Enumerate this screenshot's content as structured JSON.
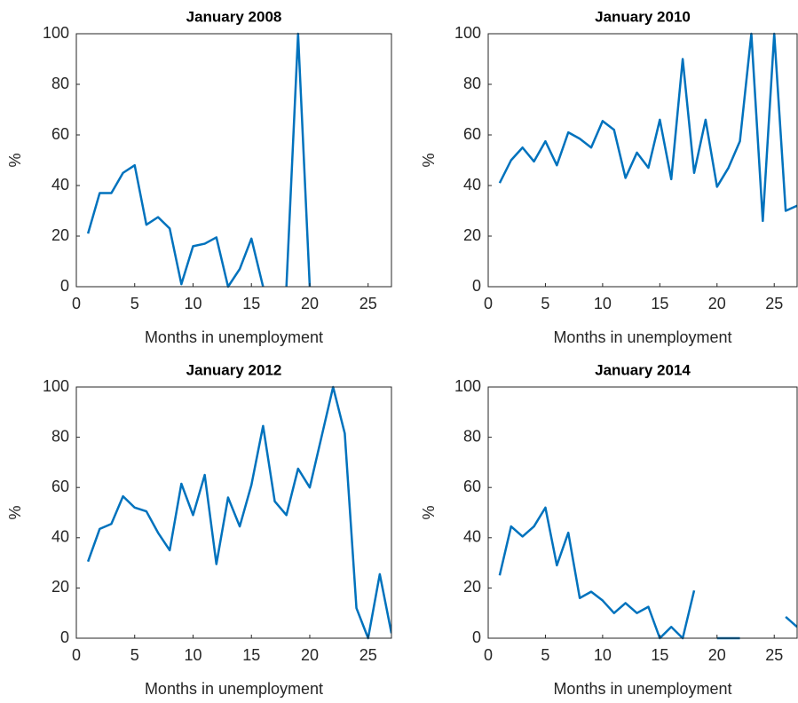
{
  "chart_data": [
    {
      "type": "line",
      "title": "January 2008",
      "xlabel": "Months in unemployment",
      "ylabel": "%",
      "x": [
        1,
        2,
        3,
        4,
        5,
        6,
        7,
        8,
        9,
        10,
        11,
        12,
        13,
        14,
        15,
        16,
        17,
        18,
        19,
        20,
        21,
        22,
        23,
        24,
        25,
        26,
        27
      ],
      "color": "#0072bd",
      "values": [
        21,
        37,
        37,
        45,
        48,
        24.5,
        27.5,
        23,
        1,
        16,
        17,
        19.5,
        0,
        7,
        19,
        0,
        null,
        0,
        100,
        0,
        null,
        null,
        null,
        null,
        null,
        null,
        null
      ],
      "xlim": [
        0,
        27
      ],
      "ylim": [
        0,
        100
      ],
      "xticks": [
        0,
        5,
        10,
        15,
        20,
        25
      ],
      "yticks": [
        0,
        20,
        40,
        60,
        80,
        100
      ]
    },
    {
      "type": "line",
      "title": "January 2010",
      "xlabel": "Months in unemployment",
      "ylabel": "%",
      "x": [
        1,
        2,
        3,
        4,
        5,
        6,
        7,
        8,
        9,
        10,
        11,
        12,
        13,
        14,
        15,
        16,
        17,
        18,
        19,
        20,
        21,
        22,
        23,
        24,
        25,
        26,
        27
      ],
      "color": "#0072bd",
      "values": [
        41,
        50,
        55,
        49.5,
        57.5,
        48,
        61,
        58.5,
        55,
        65.5,
        62,
        43,
        53,
        47,
        66,
        42.5,
        90,
        45,
        66,
        39.5,
        47,
        57.5,
        100,
        26,
        100,
        30,
        32
      ],
      "xlim": [
        0,
        27
      ],
      "ylim": [
        0,
        100
      ],
      "xticks": [
        0,
        5,
        10,
        15,
        20,
        25
      ],
      "yticks": [
        0,
        20,
        40,
        60,
        80,
        100
      ]
    },
    {
      "type": "line",
      "title": "January 2012",
      "xlabel": "Months in unemployment",
      "ylabel": "%",
      "x": [
        1,
        2,
        3,
        4,
        5,
        6,
        7,
        8,
        9,
        10,
        11,
        12,
        13,
        14,
        15,
        16,
        17,
        18,
        19,
        20,
        21,
        22,
        23,
        24,
        25,
        26,
        27
      ],
      "color": "#0072bd",
      "values": [
        30.5,
        43.5,
        45.5,
        56.5,
        52,
        50.5,
        42,
        35,
        61.5,
        49,
        65,
        29.5,
        56,
        44.5,
        61,
        84.5,
        54.5,
        49,
        67.5,
        60,
        80,
        100,
        81.5,
        12,
        0,
        25.5,
        2
      ],
      "xlim": [
        0,
        27
      ],
      "ylim": [
        0,
        100
      ],
      "xticks": [
        0,
        5,
        10,
        15,
        20,
        25
      ],
      "yticks": [
        0,
        20,
        40,
        60,
        80,
        100
      ]
    },
    {
      "type": "line",
      "title": "January 2014",
      "xlabel": "Months in unemployment",
      "ylabel": "%",
      "x": [
        1,
        2,
        3,
        4,
        5,
        6,
        7,
        8,
        9,
        10,
        11,
        12,
        13,
        14,
        15,
        16,
        17,
        18,
        19,
        20,
        21,
        22,
        23,
        24,
        25,
        26,
        27
      ],
      "color": "#0072bd",
      "values": [
        25,
        44.5,
        40.5,
        44.5,
        52,
        29,
        42,
        16,
        18.5,
        15,
        10,
        14,
        10,
        12.5,
        0,
        4.5,
        0,
        19,
        null,
        0,
        0,
        0,
        null,
        null,
        null,
        8.5,
        4.5
      ],
      "xlim": [
        0,
        27
      ],
      "ylim": [
        0,
        100
      ],
      "xticks": [
        0,
        5,
        10,
        15,
        20,
        25
      ],
      "yticks": [
        0,
        20,
        40,
        60,
        80,
        100
      ]
    }
  ]
}
